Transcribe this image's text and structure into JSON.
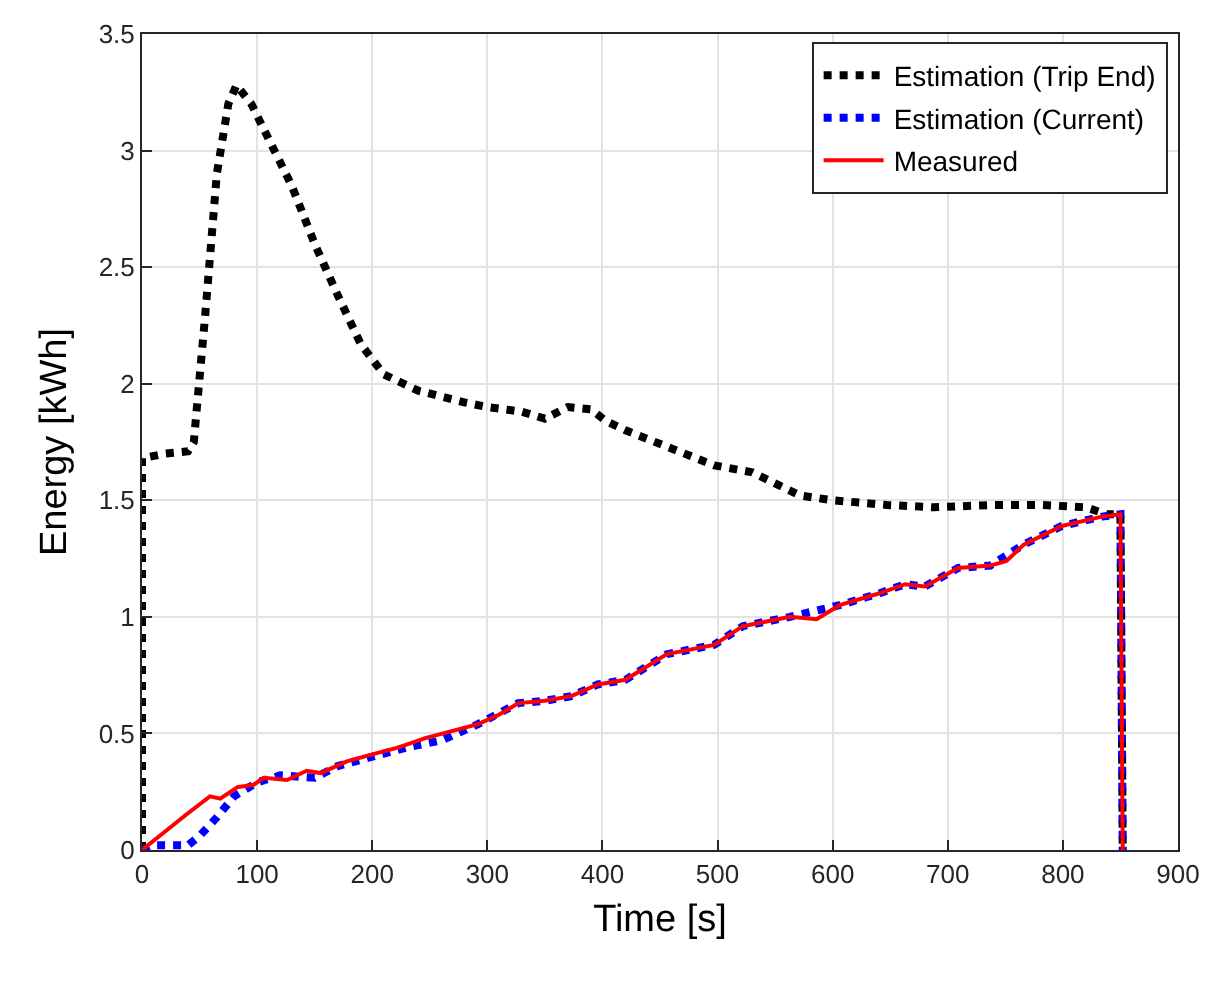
{
  "chart_data": {
    "type": "line",
    "xlabel": "Time [s]",
    "ylabel": "Energy [kWh]",
    "xlim": [
      0,
      900
    ],
    "xticks": [
      0,
      100,
      200,
      300,
      400,
      500,
      600,
      700,
      800,
      900
    ],
    "ylim": [
      0,
      3.5
    ],
    "yticks": [
      0,
      0.5,
      1,
      1.5,
      2,
      2.5,
      3,
      3.5
    ],
    "grid": true,
    "legend": "top right",
    "marker": "none",
    "series": [
      {
        "name": "Estimation (Trip End)",
        "color": "#000000",
        "line_style": "dotted",
        "x": [
          0,
          0,
          20,
          40,
          45,
          55,
          65,
          75,
          82,
          95,
          110,
          130,
          150,
          170,
          190,
          210,
          240,
          280,
          300,
          330,
          350,
          370,
          390,
          403,
          420,
          456,
          497,
          530,
          572,
          600,
          647,
          688,
          740,
          781,
          820,
          838,
          850,
          852
        ],
        "values": [
          0,
          1.68,
          1.7,
          1.71,
          1.75,
          2.3,
          2.9,
          3.2,
          3.28,
          3.2,
          3.05,
          2.85,
          2.6,
          2.38,
          2.17,
          2.04,
          1.97,
          1.92,
          1.9,
          1.88,
          1.85,
          1.9,
          1.89,
          1.84,
          1.8,
          1.73,
          1.65,
          1.62,
          1.52,
          1.5,
          1.48,
          1.47,
          1.48,
          1.48,
          1.47,
          1.44,
          1.44,
          0
        ]
      },
      {
        "name": "Estimation (Current)",
        "color": "#0000ff",
        "line_style": "dotted",
        "x": [
          0,
          10,
          40,
          50,
          65,
          80,
          100,
          120,
          150,
          170,
          200,
          230,
          260,
          292,
          327,
          350,
          373,
          396,
          420,
          456,
          497,
          522,
          563,
          606,
          640,
          663,
          680,
          709,
          737,
          766,
          799,
          834,
          850,
          852
        ],
        "values": [
          0,
          0.02,
          0.02,
          0.06,
          0.14,
          0.23,
          0.29,
          0.32,
          0.31,
          0.36,
          0.4,
          0.44,
          0.47,
          0.54,
          0.63,
          0.64,
          0.66,
          0.71,
          0.73,
          0.84,
          0.88,
          0.96,
          1.0,
          1.05,
          1.1,
          1.14,
          1.13,
          1.21,
          1.22,
          1.31,
          1.39,
          1.43,
          1.44,
          0
        ]
      },
      {
        "name": "Measured",
        "color": "#ff0000",
        "line_style": "solid",
        "x": [
          0,
          38,
          59,
          68,
          83,
          97,
          106,
          126,
          143,
          155,
          178,
          200,
          223,
          246,
          269,
          292,
          310,
          327,
          350,
          373,
          396,
          420,
          456,
          497,
          522,
          563,
          586,
          606,
          640,
          663,
          680,
          709,
          737,
          751,
          766,
          799,
          834,
          850,
          852
        ],
        "values": [
          0,
          0.15,
          0.23,
          0.22,
          0.27,
          0.28,
          0.31,
          0.3,
          0.34,
          0.33,
          0.38,
          0.41,
          0.44,
          0.48,
          0.51,
          0.54,
          0.58,
          0.63,
          0.64,
          0.66,
          0.71,
          0.73,
          0.84,
          0.88,
          0.96,
          1.0,
          0.99,
          1.05,
          1.1,
          1.14,
          1.13,
          1.21,
          1.22,
          1.24,
          1.31,
          1.39,
          1.43,
          1.44,
          0
        ]
      }
    ]
  }
}
